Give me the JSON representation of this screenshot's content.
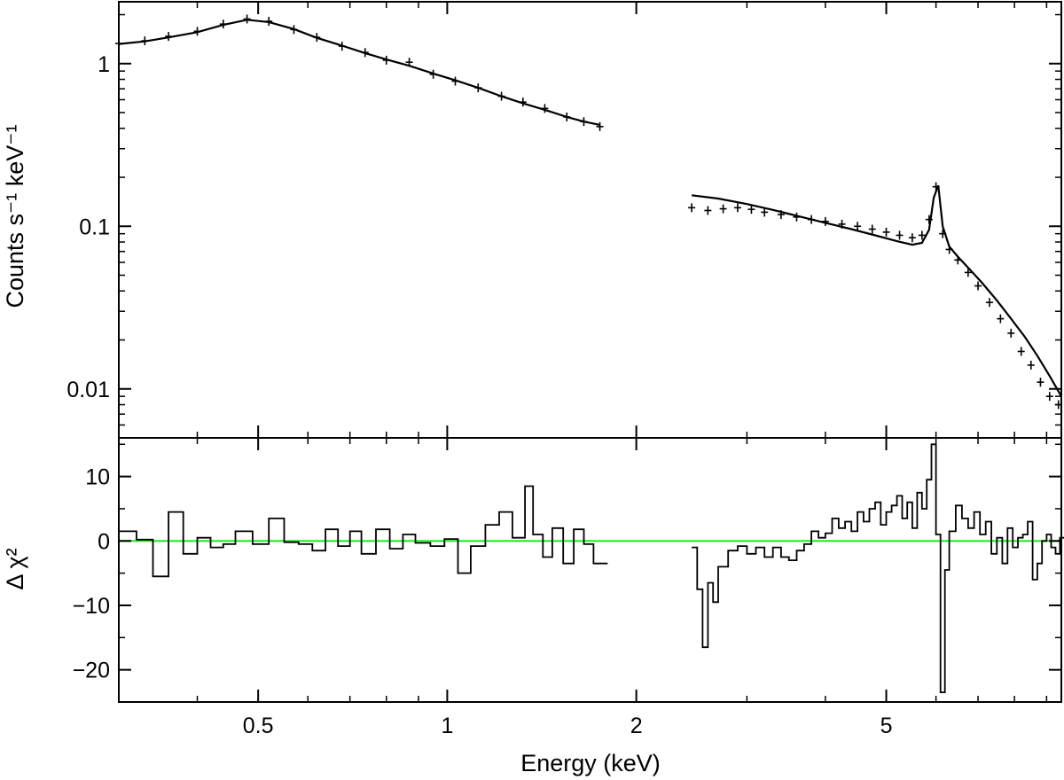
{
  "chart_data": [
    {
      "type": "scatter",
      "panel": "spectrum",
      "xlabel": "",
      "ylabel": "Counts s⁻¹ keV⁻¹",
      "x_scale": "log",
      "y_scale": "log",
      "xlim": [
        0.3,
        9.5
      ],
      "ylim": [
        0.005,
        2.4
      ],
      "x_ticks": [
        0.5,
        1,
        2,
        5
      ],
      "y_ticks": [
        0.01,
        0.1,
        1
      ],
      "y_tick_labels": [
        "0.01",
        "0.1",
        "1"
      ],
      "grid": false,
      "legend": "none",
      "series": [
        {
          "role": "data-points",
          "segments": [
            {
              "x": [
                0.3,
                0.33,
                0.36,
                0.4,
                0.44,
                0.48,
                0.52,
                0.57,
                0.62,
                0.68,
                0.74,
                0.8,
                0.87,
                0.95,
                1.03,
                1.12,
                1.22,
                1.32,
                1.43,
                1.55,
                1.65,
                1.75
              ],
              "y": [
                1.33,
                1.38,
                1.47,
                1.58,
                1.75,
                1.88,
                1.82,
                1.62,
                1.45,
                1.28,
                1.17,
                1.05,
                1.02,
                0.86,
                0.78,
                0.71,
                0.63,
                0.58,
                0.53,
                0.47,
                0.44,
                0.41
              ]
            },
            {
              "x": [
                2.45,
                2.6,
                2.75,
                2.9,
                3.05,
                3.2,
                3.4,
                3.6,
                3.8,
                4.0,
                4.25,
                4.5,
                4.75,
                5.0,
                5.25,
                5.5,
                5.7,
                5.85,
                6.0,
                6.15,
                6.3,
                6.5,
                6.75,
                7.0,
                7.3,
                7.6,
                7.9,
                8.2,
                8.5,
                8.8,
                9.1,
                9.4
              ],
              "y": [
                0.13,
                0.125,
                0.128,
                0.13,
                0.127,
                0.122,
                0.118,
                0.114,
                0.11,
                0.107,
                0.103,
                0.1,
                0.096,
                0.092,
                0.088,
                0.085,
                0.088,
                0.11,
                0.175,
                0.09,
                0.072,
                0.062,
                0.052,
                0.043,
                0.034,
                0.027,
                0.022,
                0.017,
                0.014,
                0.011,
                0.009,
                0.008
              ]
            }
          ]
        },
        {
          "role": "model-line",
          "segments": [
            {
              "x": [
                0.3,
                0.33,
                0.36,
                0.4,
                0.44,
                0.48,
                0.52,
                0.57,
                0.62,
                0.68,
                0.74,
                0.8,
                0.87,
                0.95,
                1.03,
                1.12,
                1.22,
                1.32,
                1.43,
                1.55,
                1.65,
                1.75
              ],
              "y": [
                1.32,
                1.37,
                1.45,
                1.56,
                1.73,
                1.86,
                1.8,
                1.63,
                1.44,
                1.29,
                1.16,
                1.06,
                0.97,
                0.87,
                0.79,
                0.71,
                0.63,
                0.57,
                0.52,
                0.47,
                0.44,
                0.42
              ]
            },
            {
              "x": [
                2.45,
                2.7,
                3.0,
                3.3,
                3.6,
                4.0,
                4.4,
                4.8,
                5.2,
                5.5,
                5.7,
                5.85,
                5.95,
                6.05,
                6.15,
                6.3,
                6.5,
                6.8,
                7.1,
                7.5,
                7.9,
                8.3,
                8.7,
                9.1,
                9.5
              ],
              "y": [
                0.155,
                0.148,
                0.137,
                0.126,
                0.116,
                0.105,
                0.096,
                0.088,
                0.081,
                0.077,
                0.079,
                0.095,
                0.15,
                0.178,
                0.1,
                0.075,
                0.065,
                0.054,
                0.045,
                0.035,
                0.027,
                0.021,
                0.016,
                0.012,
                0.009
              ]
            }
          ]
        }
      ]
    },
    {
      "type": "line",
      "panel": "residuals",
      "xlabel": "Energy (keV)",
      "ylabel": "Δ χ²",
      "x_scale": "log",
      "y_scale": "linear",
      "xlim": [
        0.3,
        9.5
      ],
      "ylim": [
        -25,
        16
      ],
      "x_ticks": [
        0.5,
        1,
        2,
        5
      ],
      "x_tick_labels": [
        "0.5",
        "1",
        "2",
        "5"
      ],
      "y_ticks": [
        -20,
        -10,
        0,
        10
      ],
      "y_tick_labels": [
        "−20",
        "−10",
        "0",
        "10"
      ],
      "grid": false,
      "legend": "none",
      "zero_line_color": "#22ee22",
      "series": [
        {
          "role": "residual-steps",
          "segments": [
            {
              "x": [
                0.3,
                0.32,
                0.34,
                0.36,
                0.38,
                0.4,
                0.42,
                0.44,
                0.46,
                0.49,
                0.52,
                0.55,
                0.58,
                0.61,
                0.64,
                0.67,
                0.7,
                0.73,
                0.77,
                0.81,
                0.85,
                0.89,
                0.94,
                0.99,
                1.04,
                1.09,
                1.15,
                1.21,
                1.27,
                1.33,
                1.37,
                1.42,
                1.47,
                1.53,
                1.59,
                1.65,
                1.71,
                1.76
              ],
              "y": [
                1.5,
                0.2,
                -5.5,
                4.5,
                -2.0,
                0.5,
                -1.0,
                -0.5,
                1.5,
                -0.5,
                3.5,
                -0.2,
                -0.5,
                -1.5,
                1.8,
                -0.8,
                1.5,
                -2.0,
                1.8,
                -1.2,
                1.0,
                -0.3,
                -0.8,
                0.3,
                -5.0,
                -0.8,
                2.5,
                4.5,
                0.5,
                8.5,
                1.0,
                -2.5,
                2.0,
                -3.5,
                1.8,
                -0.5,
                -3.5,
                -3.5
              ]
            },
            {
              "x": [
                2.45,
                2.5,
                2.55,
                2.6,
                2.65,
                2.7,
                2.8,
                2.9,
                3.0,
                3.1,
                3.2,
                3.3,
                3.4,
                3.5,
                3.6,
                3.7,
                3.8,
                3.9,
                4.0,
                4.1,
                4.2,
                4.3,
                4.4,
                4.5,
                4.6,
                4.7,
                4.8,
                4.9,
                5.0,
                5.1,
                5.2,
                5.3,
                5.4,
                5.5,
                5.6,
                5.7,
                5.8,
                5.9,
                6.0,
                6.1,
                6.2,
                6.3,
                6.45,
                6.6,
                6.75,
                6.9,
                7.05,
                7.2,
                7.35,
                7.5,
                7.65,
                7.8,
                7.95,
                8.1,
                8.25,
                8.4,
                8.55,
                8.7,
                8.85,
                9.0,
                9.15,
                9.3,
                9.45
              ],
              "y": [
                -1.0,
                -7.5,
                -16.5,
                -6.5,
                -9.5,
                -4.0,
                -1.5,
                -0.8,
                -2.0,
                -1.0,
                -2.5,
                -1.0,
                -2.5,
                -3.0,
                -1.5,
                -0.5,
                1.5,
                0.5,
                1.2,
                3.5,
                2.0,
                3.0,
                1.5,
                4.5,
                3.0,
                5.0,
                6.0,
                2.5,
                4.5,
                5.5,
                7.0,
                3.5,
                6.0,
                2.0,
                7.5,
                5.0,
                9.5,
                15.0,
                1.0,
                -23.5,
                -4.5,
                1.5,
                5.5,
                3.5,
                2.0,
                4.5,
                1.0,
                3.0,
                -2.0,
                0.5,
                -3.5,
                2.0,
                -1.0,
                0.5,
                1.0,
                3.0,
                -6.0,
                -3.5,
                0.0,
                1.0,
                -1.0,
                -2.0,
                0.5
              ]
            }
          ]
        }
      ]
    }
  ]
}
